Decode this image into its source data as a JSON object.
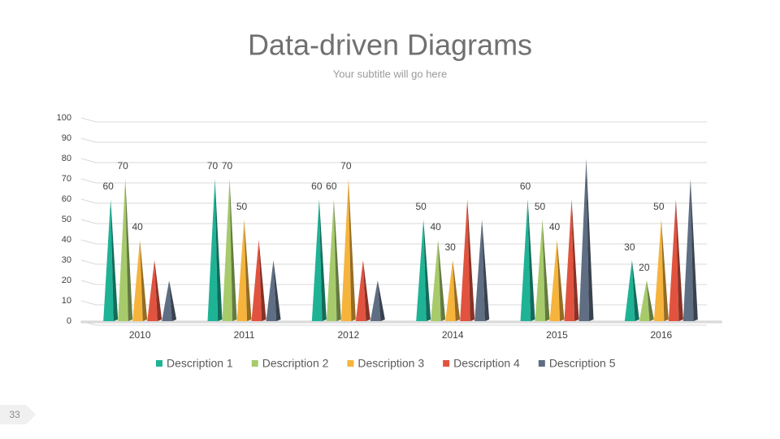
{
  "chart_data": {
    "type": "pyramid",
    "title": "Data-driven Diagrams",
    "subtitle": "Your subtitle will go here",
    "categories": [
      "2010",
      "2011",
      "2012",
      "2014",
      "2015",
      "2016"
    ],
    "series": [
      {
        "name": "Description 1",
        "color": "#1fb396",
        "values": [
          60,
          70,
          60,
          50,
          60,
          30
        ],
        "data_labels": true
      },
      {
        "name": "Description 2",
        "color": "#a7cb6b",
        "values": [
          70,
          70,
          60,
          40,
          50,
          20
        ],
        "data_labels": true
      },
      {
        "name": "Description 3",
        "color": "#f6b43c",
        "values": [
          40,
          50,
          70,
          30,
          40,
          50
        ],
        "data_labels": true
      },
      {
        "name": "Description 4",
        "color": "#e2533f",
        "values": [
          30,
          40,
          30,
          60,
          60,
          60
        ],
        "data_labels": false
      },
      {
        "name": "Description 5",
        "color": "#5f6e83",
        "values": [
          20,
          30,
          20,
          50,
          80,
          70
        ],
        "data_labels": false
      }
    ],
    "ylim": [
      0,
      100
    ],
    "yticks": [
      0,
      10,
      20,
      30,
      40,
      50,
      60,
      70,
      80,
      90,
      100
    ],
    "grid": true,
    "legend": "bottom"
  },
  "page_number": "33"
}
